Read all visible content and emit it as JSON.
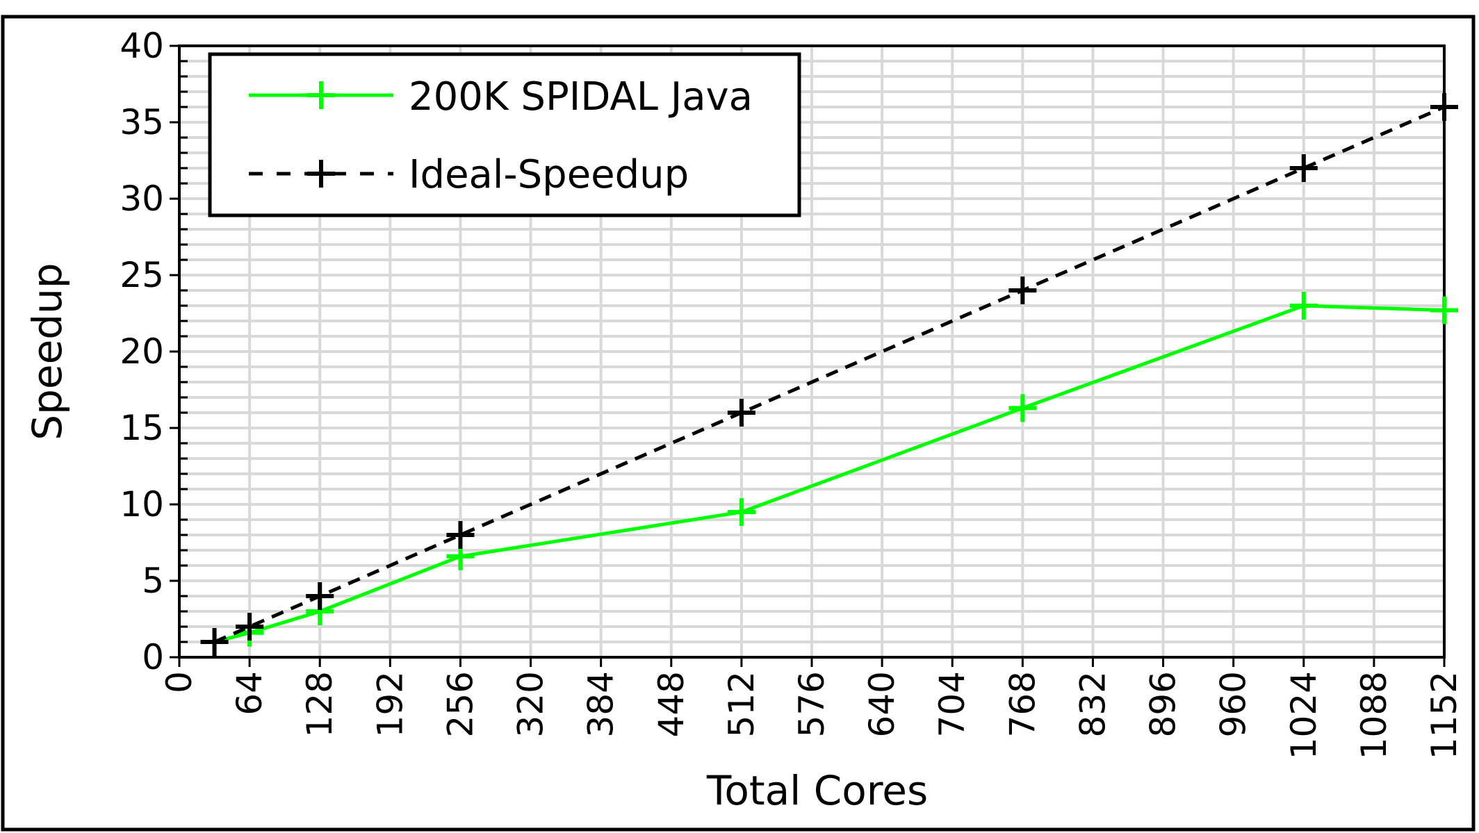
{
  "chart_data": {
    "type": "line",
    "title": "",
    "xlabel": "Total Cores",
    "ylabel": "Speedup",
    "xlim": [
      0,
      1152
    ],
    "ylim": [
      0,
      40
    ],
    "x_ticks": [
      0,
      64,
      128,
      192,
      256,
      320,
      384,
      448,
      512,
      576,
      640,
      704,
      768,
      832,
      896,
      960,
      1024,
      1088,
      1152
    ],
    "y_ticks": [
      0,
      5,
      10,
      15,
      20,
      25,
      30,
      35,
      40
    ],
    "grid": true,
    "legend_position": "top-left",
    "series": [
      {
        "name": "200K SPIDAL Java",
        "color": "#00ff00",
        "style": "solid",
        "marker": "plus",
        "x": [
          32,
          64,
          128,
          256,
          512,
          768,
          1024,
          1152
        ],
        "y": [
          1,
          1.6,
          3,
          6.6,
          9.5,
          16.3,
          23,
          22.7
        ]
      },
      {
        "name": "Ideal-Speedup",
        "color": "#000000",
        "style": "dashed",
        "marker": "plus",
        "x": [
          32,
          64,
          128,
          256,
          512,
          768,
          1024,
          1152
        ],
        "y": [
          1,
          2,
          4,
          8,
          16,
          24,
          32,
          36
        ]
      }
    ]
  }
}
